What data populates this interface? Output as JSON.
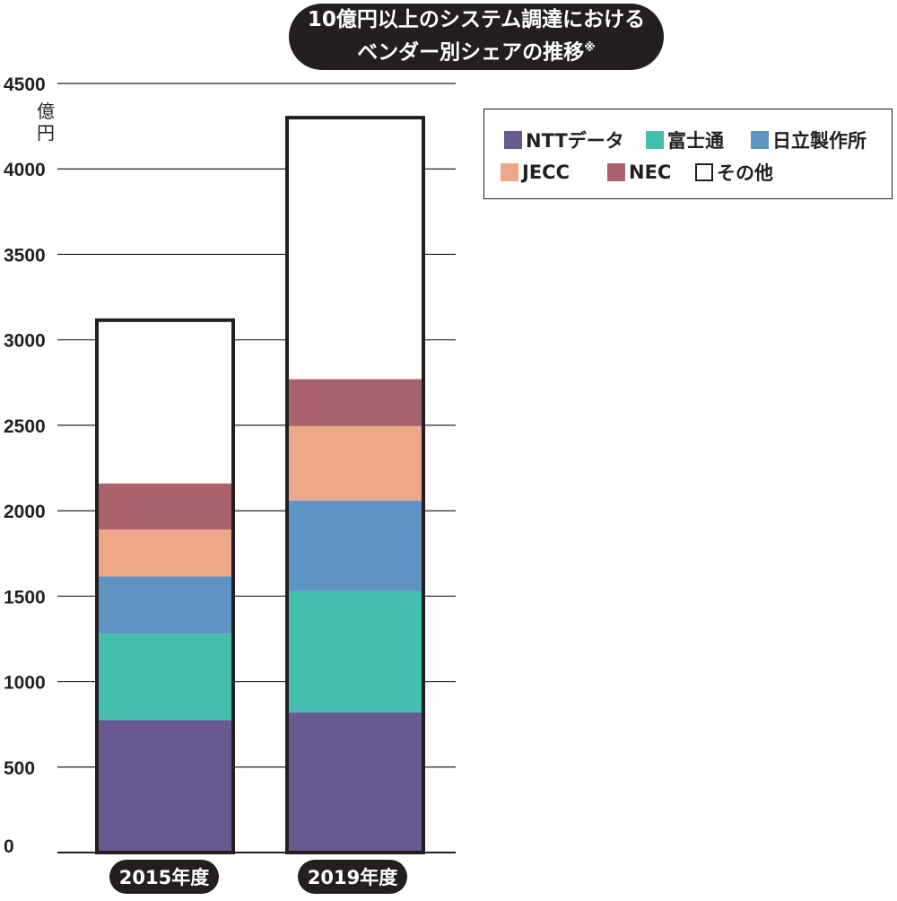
{
  "title": {
    "line1": "10億円以上のシステム調達における",
    "line2": "ベンダー別シェアの推移",
    "note_mark": "※"
  },
  "unit_label": "億円",
  "colors": {
    "NTTデータ": "#665a91",
    "富士通": "#45bfad",
    "日立製作所": "#5e93c3",
    "JECC": "#eca688",
    "NEC": "#a9636b",
    "その他": "#ffffff",
    "outline": "#231f20",
    "grid": "#231f20"
  },
  "chart_data": {
    "type": "bar",
    "stacked": true,
    "categories": [
      "2015年度",
      "2019年度"
    ],
    "ylim": [
      0,
      4500
    ],
    "yticks": [
      0,
      500,
      1000,
      1500,
      2000,
      2500,
      3000,
      3500,
      4000,
      4500
    ],
    "ylabel": "億円",
    "grid": true,
    "legend_position": "top-right",
    "series": [
      {
        "name": "NTTデータ",
        "values": [
          775,
          820
        ]
      },
      {
        "name": "富士通",
        "values": [
          505,
          710
        ]
      },
      {
        "name": "日立製作所",
        "values": [
          335,
          530
        ]
      },
      {
        "name": "JECC",
        "values": [
          275,
          435
        ]
      },
      {
        "name": "NEC",
        "values": [
          270,
          275
        ]
      },
      {
        "name": "その他",
        "values": [
          955,
          1530
        ]
      }
    ]
  }
}
